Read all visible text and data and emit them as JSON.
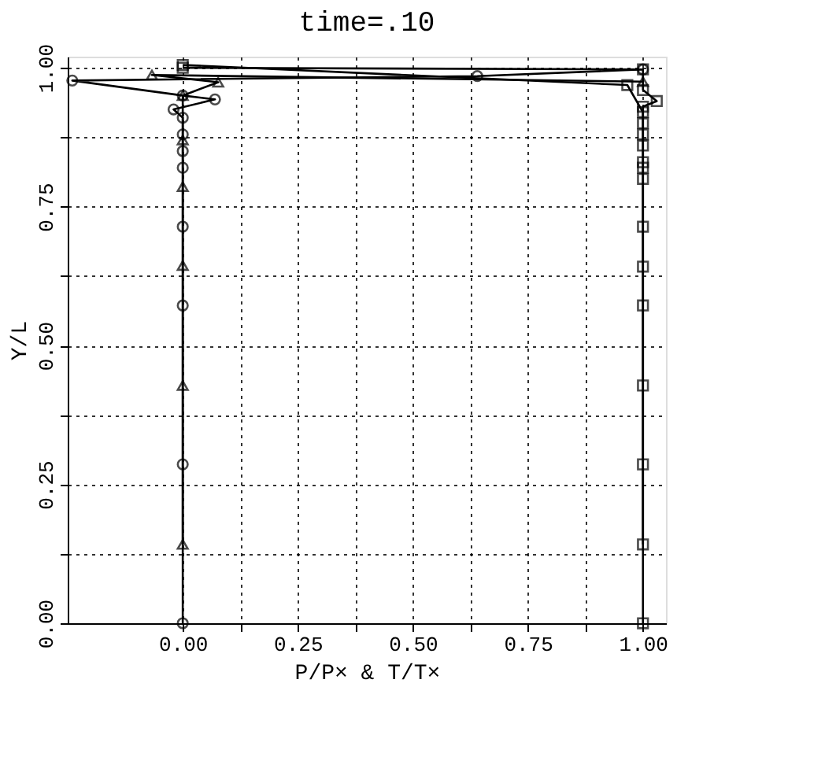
{
  "chart_data": {
    "type": "line",
    "title": "time=.10",
    "xlabel": "P/P×  & T/T×",
    "ylabel": "Y/L",
    "xlim": [
      -0.25,
      1.05
    ],
    "ylim": [
      0,
      1.02
    ],
    "xticks": [
      {
        "value": 0,
        "label": "0.00"
      },
      {
        "value": 0.125,
        "label": null
      },
      {
        "value": 0.25,
        "label": "0.25"
      },
      {
        "value": 0.375,
        "label": null
      },
      {
        "value": 0.5,
        "label": "0.50"
      },
      {
        "value": 0.625,
        "label": null
      },
      {
        "value": 0.75,
        "label": "0.75"
      },
      {
        "value": 0.875,
        "label": null
      },
      {
        "value": 1,
        "label": "1.00"
      }
    ],
    "yticks": [
      {
        "value": 0,
        "label": "0.00"
      },
      {
        "value": 0.125,
        "label": null
      },
      {
        "value": 0.25,
        "label": "0.25"
      },
      {
        "value": 0.375,
        "label": null
      },
      {
        "value": 0.5,
        "label": "0.50"
      },
      {
        "value": 0.625,
        "label": null
      },
      {
        "value": 0.75,
        "label": "0.75"
      },
      {
        "value": 0.875,
        "label": null
      },
      {
        "value": 1,
        "label": "1.00"
      }
    ],
    "grid": true,
    "legend": false,
    "line_style": "solid",
    "series": [
      {
        "color": "#000000",
        "marker": "circle",
        "x": [
          0,
          0,
          0,
          0,
          0,
          0,
          0,
          0,
          -0.02,
          0.07,
          0,
          -0.24,
          0.64,
          1.0
        ],
        "values": [
          0,
          0.286,
          0.572,
          0.714,
          0.82,
          0.85,
          0.88,
          0.91,
          0.925,
          0.943,
          0.95,
          0.977,
          0.985,
          0.997
        ]
      },
      {
        "color": "#000000",
        "marker": "triangle",
        "x": [
          0,
          0,
          0,
          0,
          0,
          0,
          0.077,
          -0.067,
          1.0
        ],
        "values": [
          0.142,
          0.428,
          0.644,
          0.786,
          0.87,
          0.95,
          0.974,
          0.987,
          0.975
        ]
      },
      {
        "color": "#000000",
        "marker": "square",
        "x": [
          1,
          1,
          1,
          1,
          1,
          1,
          1,
          1,
          1,
          1.03,
          1,
          1,
          0
        ],
        "values": [
          0,
          0.286,
          0.572,
          0.714,
          0.8,
          0.83,
          0.86,
          0.9,
          0.93,
          0.94,
          0.96,
          0.997,
          1.0
        ]
      },
      {
        "color": "#000000",
        "marker": "square",
        "x": [
          1,
          1,
          1,
          1,
          1,
          1,
          0.966,
          0
        ],
        "values": [
          0.142,
          0.428,
          0.642,
          0.82,
          0.88,
          0.92,
          0.969,
          1.005
        ]
      }
    ]
  }
}
